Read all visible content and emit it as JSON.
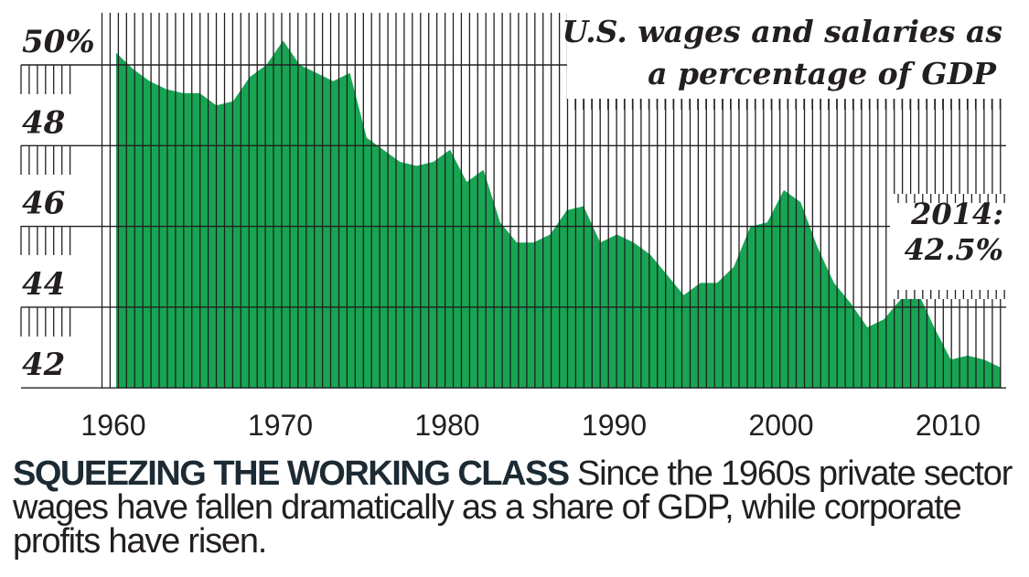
{
  "chart_data": {
    "type": "area",
    "title": "U.S. wages and salaries as a percentage of GDP",
    "title_lines": [
      "U.S. wages and salaries as",
      "a percentage of GDP"
    ],
    "xlabel": "",
    "ylabel": "",
    "x_ticks": [
      1960,
      1970,
      1980,
      1990,
      2000,
      2010
    ],
    "y_ticks": [
      {
        "value": 50,
        "label": "50%"
      },
      {
        "value": 48,
        "label": "48"
      },
      {
        "value": 46,
        "label": "46"
      },
      {
        "value": 44,
        "label": "44"
      },
      {
        "value": 42,
        "label": "42"
      }
    ],
    "ylim": [
      42,
      50
    ],
    "xlim": [
      1960,
      2013
    ],
    "grid": true,
    "fill_color": "#17a553",
    "grid_color": "#231f20",
    "annotation": {
      "line1": "2014:",
      "line2": "42.5%"
    },
    "x": [
      1960,
      1961,
      1962,
      1963,
      1964,
      1965,
      1966,
      1967,
      1968,
      1969,
      1970,
      1971,
      1972,
      1973,
      1974,
      1975,
      1976,
      1977,
      1978,
      1979,
      1980,
      1981,
      1982,
      1983,
      1984,
      1985,
      1986,
      1987,
      1988,
      1989,
      1990,
      1991,
      1992,
      1993,
      1994,
      1995,
      1996,
      1997,
      1998,
      1999,
      2000,
      2001,
      2002,
      2003,
      2004,
      2005,
      2006,
      2007,
      2008,
      2009,
      2010,
      2011,
      2012,
      2013
    ],
    "values": [
      50.3,
      49.9,
      49.6,
      49.4,
      49.3,
      49.3,
      49.0,
      49.1,
      49.7,
      50.0,
      50.6,
      50.0,
      49.8,
      49.6,
      49.8,
      48.2,
      47.9,
      47.6,
      47.5,
      47.6,
      47.9,
      47.1,
      47.4,
      46.1,
      45.6,
      45.6,
      45.8,
      46.4,
      46.5,
      45.6,
      45.8,
      45.6,
      45.3,
      44.8,
      44.3,
      44.6,
      44.6,
      45.0,
      46.0,
      46.1,
      46.9,
      46.6,
      45.5,
      44.6,
      44.1,
      43.5,
      43.7,
      44.2,
      44.4,
      43.5,
      42.7,
      42.8,
      42.7,
      42.5
    ]
  },
  "caption": {
    "headline": "SQUEEZING THE WORKING CLASS",
    "body": " Since the 1960s private sector wages have fallen dramatically as a share of GDP, while corporate profits have risen."
  }
}
